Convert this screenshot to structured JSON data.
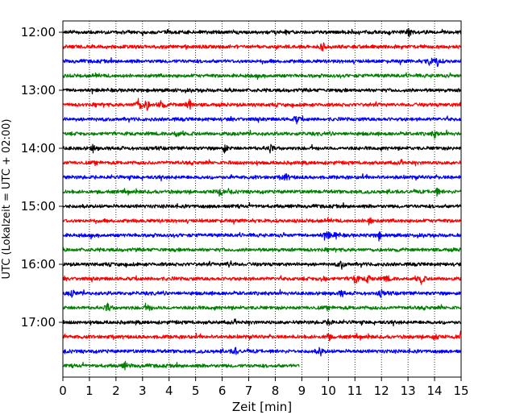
{
  "chart_data": {
    "type": "line",
    "title": "",
    "xlabel": "Zeit  [min]",
    "ylabel": "UTC (Lokalzeit = UTC + 02:00)",
    "xlim": [
      0,
      15
    ],
    "x_ticks": [
      0,
      1,
      2,
      3,
      4,
      5,
      6,
      7,
      8,
      9,
      10,
      11,
      12,
      13,
      14,
      15
    ],
    "y_tick_labels": [
      "12:00",
      "13:00",
      "14:00",
      "15:00",
      "16:00",
      "17:00"
    ],
    "grid": "vertical dotted",
    "trace_colors": [
      "#000000",
      "#ff0000",
      "#0000ff",
      "#008000"
    ],
    "traces": [
      {
        "start": "12:00",
        "end_minute": 15,
        "color": "#000000",
        "events": [
          [
            13.05,
            1.4
          ]
        ]
      },
      {
        "start": "12:15",
        "end_minute": 15,
        "color": "#ff0000",
        "events": [
          [
            9.8,
            1.4
          ]
        ]
      },
      {
        "start": "12:30",
        "end_minute": 15,
        "color": "#0000ff",
        "events": [
          [
            14.1,
            2.0
          ],
          [
            13.8,
            1.3
          ]
        ]
      },
      {
        "start": "12:45",
        "end_minute": 15,
        "color": "#008000",
        "events": []
      },
      {
        "start": "13:00",
        "end_minute": 15,
        "color": "#000000",
        "events": []
      },
      {
        "start": "13:15",
        "end_minute": 15,
        "color": "#ff0000",
        "events": [
          [
            2.85,
            2.8
          ],
          [
            3.15,
            2.3
          ],
          [
            3.7,
            2.0
          ],
          [
            4.75,
            2.4
          ],
          [
            15.0,
            1.5
          ]
        ]
      },
      {
        "start": "13:30",
        "end_minute": 15,
        "color": "#0000ff",
        "events": [
          [
            8.8,
            1.4
          ]
        ]
      },
      {
        "start": "13:45",
        "end_minute": 15,
        "color": "#008000",
        "events": [
          [
            4.3,
            1.3
          ],
          [
            14.0,
            1.3
          ]
        ]
      },
      {
        "start": "14:00",
        "end_minute": 15,
        "color": "#000000",
        "events": [
          [
            6.1,
            1.7
          ],
          [
            7.8,
            1.5
          ],
          [
            1.15,
            1.3
          ]
        ]
      },
      {
        "start": "14:15",
        "end_minute": 15,
        "color": "#ff0000",
        "events": []
      },
      {
        "start": "14:30",
        "end_minute": 15,
        "color": "#0000ff",
        "events": [
          [
            8.4,
            1.3
          ]
        ]
      },
      {
        "start": "14:45",
        "end_minute": 15,
        "color": "#008000",
        "events": [
          [
            5.9,
            1.7
          ],
          [
            14.1,
            1.3
          ]
        ]
      },
      {
        "start": "15:00",
        "end_minute": 15,
        "color": "#000000",
        "events": []
      },
      {
        "start": "15:15",
        "end_minute": 15,
        "color": "#ff0000",
        "events": [
          [
            11.55,
            1.6
          ]
        ]
      },
      {
        "start": "15:30",
        "end_minute": 15,
        "color": "#0000ff",
        "events": [
          [
            9.95,
            1.9
          ],
          [
            11.9,
            1.6
          ],
          [
            10.3,
            1.4
          ]
        ]
      },
      {
        "start": "15:45",
        "end_minute": 15,
        "color": "#008000",
        "events": []
      },
      {
        "start": "16:00",
        "end_minute": 15,
        "color": "#000000",
        "events": [
          [
            6.3,
            1.3
          ],
          [
            10.5,
            1.5
          ]
        ]
      },
      {
        "start": "16:15",
        "end_minute": 15,
        "color": "#ff0000",
        "events": [
          [
            11.0,
            2.2
          ],
          [
            11.5,
            1.6
          ],
          [
            13.5,
            2.0
          ],
          [
            9.8,
            1.3
          ],
          [
            12.2,
            1.3
          ]
        ]
      },
      {
        "start": "16:30",
        "end_minute": 15,
        "color": "#0000ff",
        "events": [
          [
            0.35,
            1.4
          ],
          [
            10.5,
            1.3
          ],
          [
            12.0,
            1.3
          ]
        ]
      },
      {
        "start": "16:45",
        "end_minute": 15,
        "color": "#008000",
        "events": [
          [
            1.7,
            1.6
          ],
          [
            3.2,
            1.3
          ]
        ]
      },
      {
        "start": "17:00",
        "end_minute": 15,
        "color": "#000000",
        "events": [
          [
            10.05,
            1.3
          ]
        ]
      },
      {
        "start": "17:15",
        "end_minute": 15,
        "color": "#ff0000",
        "events": [
          [
            14.0,
            1.5
          ],
          [
            10.0,
            1.3
          ],
          [
            15.0,
            1.3
          ]
        ]
      },
      {
        "start": "17:30",
        "end_minute": 15,
        "color": "#0000ff",
        "events": [
          [
            9.7,
            1.6
          ],
          [
            6.5,
            1.3
          ]
        ]
      },
      {
        "start": "17:45",
        "end_minute": 8.9,
        "color": "#008000",
        "events": [
          [
            2.35,
            1.3
          ]
        ]
      }
    ]
  }
}
